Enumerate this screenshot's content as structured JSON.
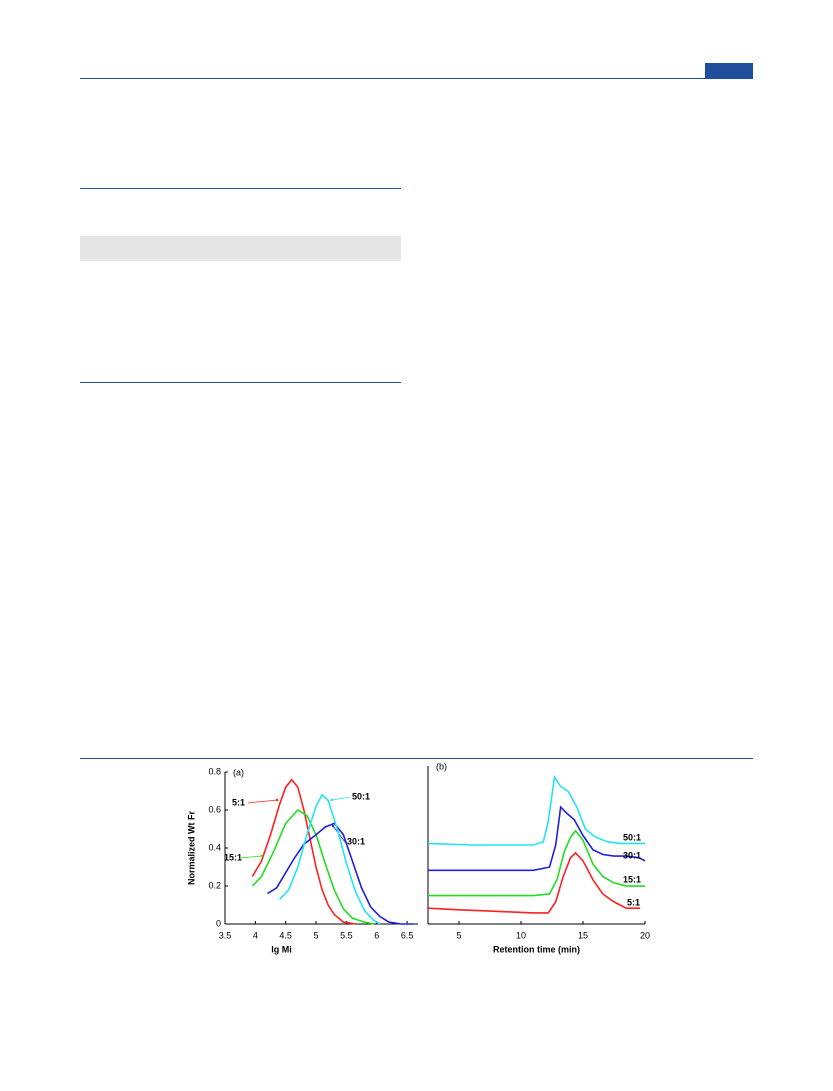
{
  "chart_data": [
    {
      "type": "line",
      "panel": "(a)",
      "ylabel": "Normalized Wt Fr",
      "xlabel": "lg Mi",
      "xlim": [
        3.5,
        6.68
      ],
      "ylim": [
        0,
        0.8
      ],
      "xticks": [
        3.5,
        4.0,
        4.5,
        5.0,
        5.5,
        6.0,
        6.5
      ],
      "yticks": [
        0.0,
        0.2,
        0.4,
        0.6,
        0.8
      ],
      "series": [
        {
          "name": "5:1",
          "color": "#ff2020",
          "x": [
            3.95,
            4.1,
            4.25,
            4.4,
            4.5,
            4.6,
            4.7,
            4.8,
            4.9,
            5.0,
            5.1,
            5.2,
            5.3,
            5.45,
            5.65
          ],
          "values": [
            0.25,
            0.33,
            0.47,
            0.63,
            0.72,
            0.76,
            0.72,
            0.6,
            0.45,
            0.3,
            0.18,
            0.1,
            0.05,
            0.01,
            0
          ]
        },
        {
          "name": "15:1",
          "color": "#22dd22",
          "x": [
            3.95,
            4.1,
            4.3,
            4.5,
            4.7,
            4.85,
            5.0,
            5.15,
            5.3,
            5.45,
            5.6,
            5.8,
            5.95
          ],
          "values": [
            0.2,
            0.25,
            0.38,
            0.53,
            0.6,
            0.57,
            0.47,
            0.32,
            0.18,
            0.08,
            0.03,
            0.01,
            0
          ]
        },
        {
          "name": "30:1",
          "color": "#2020dd",
          "x": [
            4.2,
            4.35,
            4.5,
            4.65,
            4.8,
            5.0,
            5.15,
            5.3,
            5.45,
            5.6,
            5.75,
            5.9,
            6.05,
            6.2,
            6.4,
            6.6
          ],
          "values": [
            0.16,
            0.19,
            0.27,
            0.35,
            0.42,
            0.47,
            0.51,
            0.53,
            0.47,
            0.33,
            0.19,
            0.09,
            0.04,
            0.01,
            0,
            0
          ]
        },
        {
          "name": "50:1",
          "color": "#22e5f0",
          "x": [
            4.4,
            4.55,
            4.7,
            4.85,
            5.0,
            5.1,
            5.2,
            5.35,
            5.5,
            5.65,
            5.8,
            5.95,
            6.05
          ],
          "values": [
            0.13,
            0.18,
            0.3,
            0.47,
            0.62,
            0.68,
            0.65,
            0.5,
            0.32,
            0.17,
            0.07,
            0.02,
            0
          ]
        }
      ]
    },
    {
      "type": "line",
      "panel": "(b)",
      "xlabel": "Retention time (min)",
      "xlim": [
        2.5,
        20
      ],
      "ylim": [
        0,
        1
      ],
      "xticks": [
        5,
        10,
        15,
        20
      ],
      "series": [
        {
          "name": "50:1",
          "color": "#22e5f0",
          "x": [
            2.5,
            6,
            9,
            11,
            11.8,
            12.2,
            12.7,
            13.2,
            13.8,
            14.5,
            15.2,
            16,
            17,
            18,
            19,
            20
          ],
          "values": [
            0.51,
            0.5,
            0.5,
            0.5,
            0.52,
            0.65,
            0.93,
            0.87,
            0.84,
            0.74,
            0.6,
            0.55,
            0.52,
            0.51,
            0.51,
            0.51
          ]
        },
        {
          "name": "30:1",
          "color": "#2020dd",
          "x": [
            2.5,
            6,
            9,
            11,
            12.3,
            12.8,
            13.2,
            13.7,
            14.3,
            15,
            15.8,
            16.6,
            17.5,
            18.5,
            19.5,
            20
          ],
          "values": [
            0.34,
            0.34,
            0.34,
            0.34,
            0.36,
            0.5,
            0.74,
            0.7,
            0.66,
            0.56,
            0.47,
            0.44,
            0.43,
            0.43,
            0.42,
            0.4
          ]
        },
        {
          "name": "15:1",
          "color": "#22dd22",
          "x": [
            2.5,
            6,
            9,
            11,
            12.3,
            12.9,
            13.5,
            14,
            14.4,
            15,
            15.8,
            16.6,
            17.5,
            18.5,
            19.5,
            20
          ],
          "values": [
            0.18,
            0.18,
            0.18,
            0.18,
            0.19,
            0.28,
            0.46,
            0.55,
            0.59,
            0.53,
            0.38,
            0.3,
            0.26,
            0.24,
            0.24,
            0.24
          ]
        },
        {
          "name": "5:1",
          "color": "#ff2020",
          "x": [
            2.5,
            5,
            8,
            11,
            12.2,
            12.8,
            13.4,
            14,
            14.4,
            15,
            15.8,
            16.6,
            17.5,
            18.5,
            19.2,
            19.6
          ],
          "values": [
            0.1,
            0.09,
            0.08,
            0.07,
            0.07,
            0.14,
            0.3,
            0.42,
            0.45,
            0.4,
            0.28,
            0.19,
            0.14,
            0.1,
            0.1,
            0.1
          ]
        }
      ]
    }
  ]
}
